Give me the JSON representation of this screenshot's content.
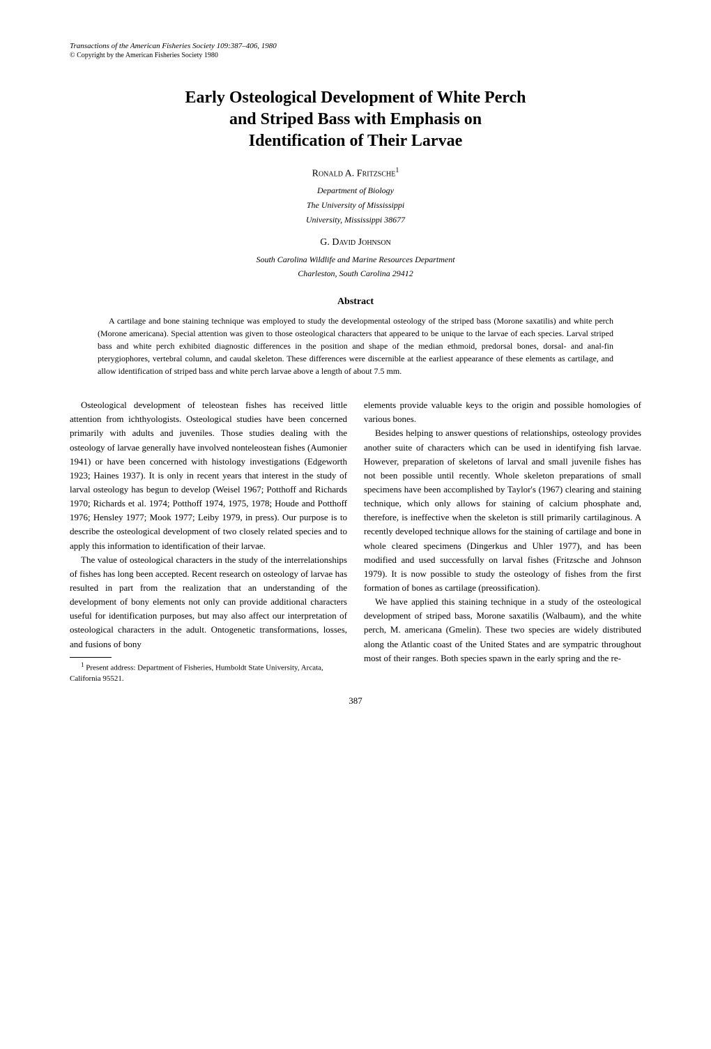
{
  "journal_header": "Transactions of the American Fisheries Society 109:387–406, 1980",
  "copyright": "© Copyright by the American Fisheries Society 1980",
  "title_line1": "Early Osteological Development of White Perch",
  "title_line2": "and Striped Bass with Emphasis on",
  "title_line3": "Identification of Their Larvae",
  "author1": {
    "name": "Ronald A. Fritzsche",
    "sup": "1",
    "affil1": "Department of Biology",
    "affil2": "The University of Mississippi",
    "affil3": "University, Mississippi 38677"
  },
  "author2": {
    "name": "G. David Johnson",
    "affil1": "South Carolina Wildlife and Marine Resources Department",
    "affil2": "Charleston, South Carolina 29412"
  },
  "abstract": {
    "heading": "Abstract",
    "text": "A cartilage and bone staining technique was employed to study the developmental osteology of the striped bass (Morone saxatilis) and white perch (Morone americana). Special attention was given to those osteological characters that appeared to be unique to the larvae of each species. Larval striped bass and white perch exhibited diagnostic differences in the position and shape of the median ethmoid, predorsal bones, dorsal- and anal-fin pterygiophores, vertebral column, and caudal skeleton. These differences were discernible at the earliest appearance of these elements as cartilage, and allow identification of striped bass and white perch larvae above a length of about 7.5 mm."
  },
  "body": {
    "left_p1": "Osteological development of teleostean fishes has received little attention from ichthyologists. Osteological studies have been concerned primarily with adults and juveniles. Those studies dealing with the osteology of larvae generally have involved nonteleostean fishes (Aumonier 1941) or have been concerned with histology investigations (Edgeworth 1923; Haines 1937). It is only in recent years that interest in the study of larval osteology has begun to develop (Weisel 1967; Potthoff and Richards 1970; Richards et al. 1974; Potthoff 1974, 1975, 1978; Houde and Potthoff 1976; Hensley 1977; Mook 1977; Leiby 1979, in press). Our purpose is to describe the osteological development of two closely related species and to apply this information to identification of their larvae.",
    "left_p2": "The value of osteological characters in the study of the interrelationships of fishes has long been accepted. Recent research on osteology of larvae has resulted in part from the realization that an understanding of the development of bony elements not only can provide additional characters useful for identification purposes, but may also affect our interpretation of osteological characters in the adult. Ontogenetic transformations, losses, and fusions of bony",
    "right_p1": "elements provide valuable keys to the origin and possible homologies of various bones.",
    "right_p2": "Besides helping to answer questions of relationships, osteology provides another suite of characters which can be used in identifying fish larvae. However, preparation of skeletons of larval and small juvenile fishes has not been possible until recently. Whole skeleton preparations of small specimens have been accomplished by Taylor's (1967) clearing and staining technique, which only allows for staining of calcium phosphate and, therefore, is ineffective when the skeleton is still primarily cartilaginous. A recently developed technique allows for the staining of cartilage and bone in whole cleared specimens (Dingerkus and Uhler 1977), and has been modified and used successfully on larval fishes (Fritzsche and Johnson 1979). It is now possible to study the osteology of fishes from the first formation of bones as cartilage (preossification).",
    "right_p3": "We have applied this staining technique in a study of the osteological development of striped bass, Morone saxatilis (Walbaum), and the white perch, M. americana (Gmelin). These two species are widely distributed along the Atlantic coast of the United States and are sympatric throughout most of their ranges. Both species spawn in the early spring and the re-"
  },
  "footnote": {
    "sup": "1",
    "text": " Present address: Department of Fisheries, Humboldt State University, Arcata, California 95521."
  },
  "page_number": "387"
}
